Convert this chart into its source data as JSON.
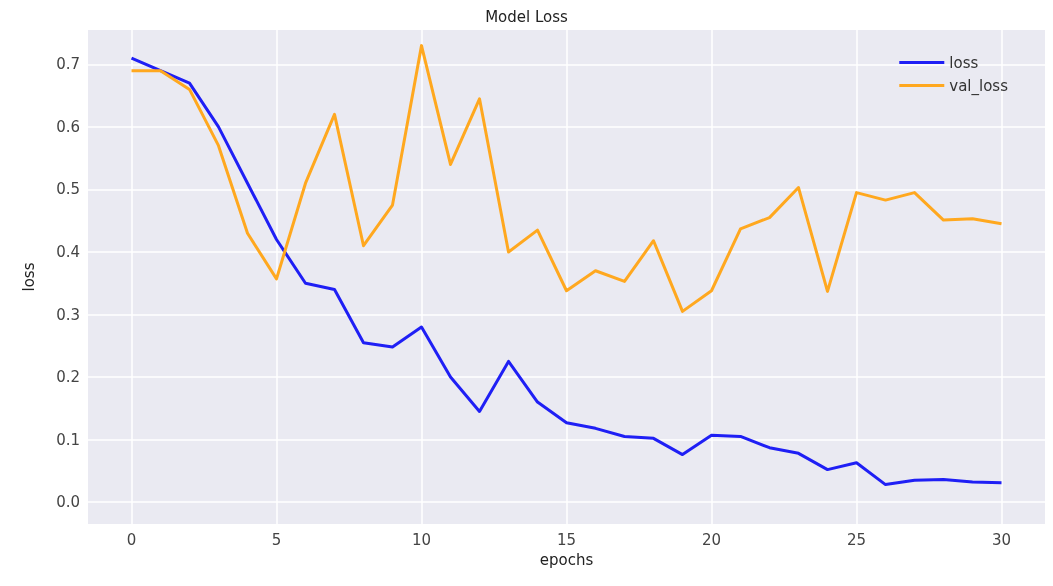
{
  "chart_data": {
    "type": "line",
    "title": "Model Loss",
    "xlabel": "epochs",
    "ylabel": "loss",
    "x": [
      0,
      1,
      2,
      3,
      4,
      5,
      6,
      7,
      8,
      9,
      10,
      11,
      12,
      13,
      14,
      15,
      16,
      17,
      18,
      19,
      20,
      21,
      22,
      23,
      24,
      25,
      26,
      27,
      28,
      29,
      30
    ],
    "series": [
      {
        "name": "loss",
        "color": "#1f1ff5",
        "values": [
          0.71,
          0.69,
          0.67,
          0.6,
          0.51,
          0.42,
          0.35,
          0.34,
          0.255,
          0.248,
          0.28,
          0.2,
          0.145,
          0.225,
          0.16,
          0.127,
          0.118,
          0.105,
          0.102,
          0.076,
          0.107,
          0.105,
          0.087,
          0.078,
          0.052,
          0.063,
          0.028,
          0.035,
          0.036,
          0.032,
          0.031
        ]
      },
      {
        "name": "val_loss",
        "color": "#ffa81f",
        "values": [
          0.69,
          0.69,
          0.66,
          0.57,
          0.43,
          0.357,
          0.51,
          0.62,
          0.41,
          0.475,
          0.73,
          0.54,
          0.645,
          0.4,
          0.435,
          0.338,
          0.37,
          0.353,
          0.418,
          0.305,
          0.338,
          0.437,
          0.455,
          0.503,
          0.337,
          0.495,
          0.483,
          0.495,
          0.451,
          0.453,
          0.445
        ]
      }
    ],
    "xlim": [
      -1.5,
      31.5
    ],
    "xticks": [
      0,
      5,
      10,
      15,
      20,
      25,
      30
    ],
    "ylim": [
      -0.035,
      0.755
    ],
    "yticks": [
      {
        "value": 0,
        "label": "0.0"
      },
      0.1,
      0.2,
      0.3,
      0.4,
      0.5,
      0.6,
      0.7
    ],
    "grid": true,
    "legend": "top right",
    "marker": "none",
    "line_style": "solid"
  }
}
